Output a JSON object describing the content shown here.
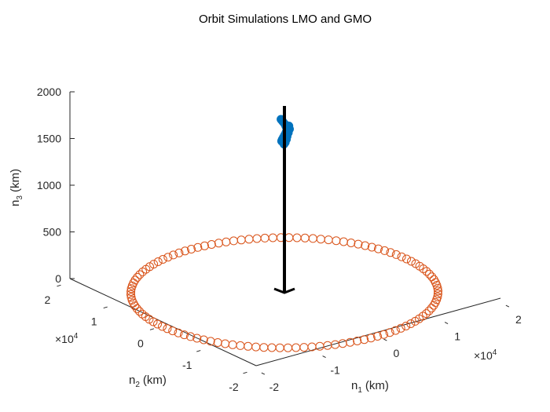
{
  "chart_data": {
    "type": "scatter",
    "projection": "3d",
    "title": "Orbit Simulations LMO and GMO",
    "axes": {
      "x": {
        "label_main": "n",
        "label_sub": "1",
        "label_unit": "(km)",
        "range": [
          -2.2,
          2.2
        ],
        "ticks": [
          -2,
          -1,
          0,
          1,
          2
        ],
        "tick_labels": [
          "-2",
          "-1",
          "0",
          "1",
          "2"
        ],
        "exponent_base": "×10",
        "exponent_power": "4"
      },
      "y": {
        "label_main": "n",
        "label_sub": "2",
        "label_unit": "(km)",
        "range": [
          -2.2,
          2.2
        ],
        "ticks": [
          -2,
          -1,
          0,
          1,
          2
        ],
        "tick_labels": [
          "-2",
          "-1",
          "0",
          "1",
          "2"
        ],
        "exponent_base": "×10",
        "exponent_power": "4"
      },
      "z": {
        "label_main": "n",
        "label_sub": "3",
        "label_unit": "(km)",
        "range": [
          0,
          2000
        ],
        "ticks": [
          0,
          500,
          1000,
          1500,
          2000
        ],
        "tick_labels": [
          "0",
          "500",
          "1000",
          "1500",
          "2000"
        ]
      }
    },
    "grid": false,
    "series": [
      {
        "kind": "ring",
        "marker": "open-circle",
        "color": "#d95319",
        "center": [
          0,
          0,
          0
        ],
        "radius_x": 2.0,
        "radius_y": 2.0,
        "n_points": 120
      },
      {
        "kind": "cluster",
        "marker": "filled-circle",
        "color": "#0072bd",
        "points": [
          [
            0.02,
            0.1,
            1830
          ],
          [
            0.03,
            0.1,
            1820
          ],
          [
            0.05,
            0.1,
            1800
          ],
          [
            0.08,
            0.1,
            1770
          ],
          [
            0.1,
            0.1,
            1740
          ],
          [
            0.12,
            0.1,
            1715
          ],
          [
            0.12,
            0.1,
            1690
          ],
          [
            0.1,
            0.1,
            1670
          ],
          [
            0.08,
            0.1,
            1650
          ],
          [
            0.06,
            0.1,
            1630
          ],
          [
            0.04,
            0.1,
            1610
          ],
          [
            0.03,
            0.1,
            1595
          ],
          [
            0.05,
            0.1,
            1600
          ],
          [
            0.07,
            0.1,
            1625
          ],
          [
            0.09,
            0.1,
            1655
          ],
          [
            0.11,
            0.1,
            1685
          ],
          [
            0.13,
            0.1,
            1710
          ],
          [
            0.15,
            0.1,
            1735
          ],
          [
            0.16,
            0.1,
            1700
          ],
          [
            0.14,
            0.1,
            1665
          ],
          [
            0.12,
            0.1,
            1630
          ],
          [
            0.1,
            0.1,
            1600
          ],
          [
            0.08,
            0.1,
            1575
          ],
          [
            0.07,
            0.1,
            1555
          ],
          [
            0.09,
            0.1,
            1570
          ],
          [
            0.11,
            0.1,
            1600
          ]
        ]
      },
      {
        "kind": "vector",
        "color": "#000000",
        "from": [
          0,
          0,
          2000
        ],
        "to": [
          0,
          0,
          0
        ]
      }
    ]
  }
}
